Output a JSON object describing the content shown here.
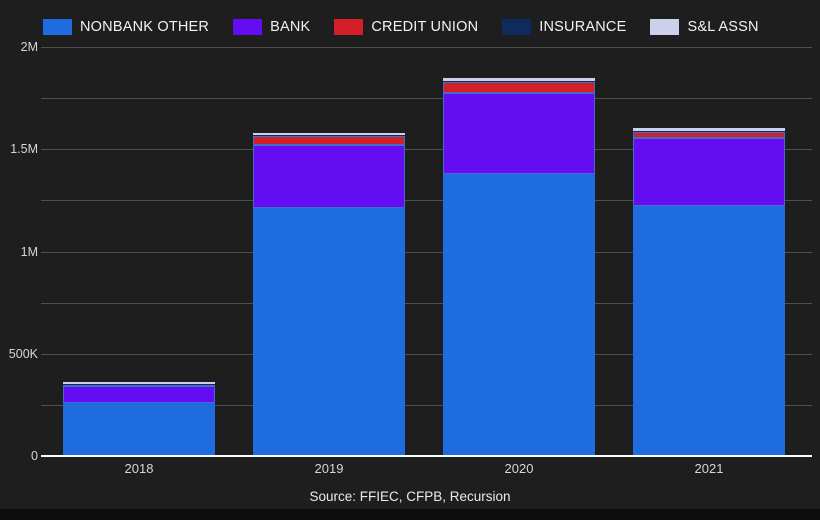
{
  "page": {
    "background_color": "#1e1e1e",
    "footer_bar_color": "#0d0d0d"
  },
  "source_note": "Source: FFIEC, CFPB, Recursion",
  "chart_data": {
    "type": "bar",
    "stacked": true,
    "title": "",
    "xlabel": "",
    "ylabel": "",
    "categories": [
      "2018",
      "2019",
      "2020",
      "2021"
    ],
    "series": [
      {
        "name": "NONBANK OTHER",
        "color": "#1f6ce0",
        "values": [
          257000,
          1215000,
          1380000,
          1222000
        ]
      },
      {
        "name": "BANK",
        "color": "#640df2",
        "values": [
          85000,
          305000,
          395000,
          335000
        ]
      },
      {
        "name": "CREDIT UNION",
        "color": "#d21f28",
        "values": [
          5000,
          45000,
          52000,
          26000
        ]
      },
      {
        "name": "INSURANCE",
        "color": "#0d2b5e",
        "values": [
          3000,
          5000,
          6000,
          5000
        ]
      },
      {
        "name": "S&L ASSN",
        "color": "#ccd0eb",
        "values": [
          10000,
          12000,
          15000,
          14000
        ]
      }
    ],
    "ylim": [
      0,
      2000000
    ],
    "yticks": [
      {
        "value": 0,
        "label": "0"
      },
      {
        "value": 500000,
        "label": "500K"
      },
      {
        "value": 1000000,
        "label": "1M"
      },
      {
        "value": 1500000,
        "label": "1.5M"
      },
      {
        "value": 2000000,
        "label": "2M"
      }
    ],
    "grid_values": [
      250000,
      500000,
      750000,
      1000000,
      1250000,
      1500000,
      1750000,
      2000000
    ],
    "grid": true,
    "legend_position": "top",
    "grid_color": "#4e4e4e",
    "axis_line_color": "#ffffff",
    "segment_outline_color": "#3f6fc4",
    "outlined_series": [
      "BANK",
      "CREDIT UNION"
    ],
    "text_color": "#d6d6d6"
  }
}
